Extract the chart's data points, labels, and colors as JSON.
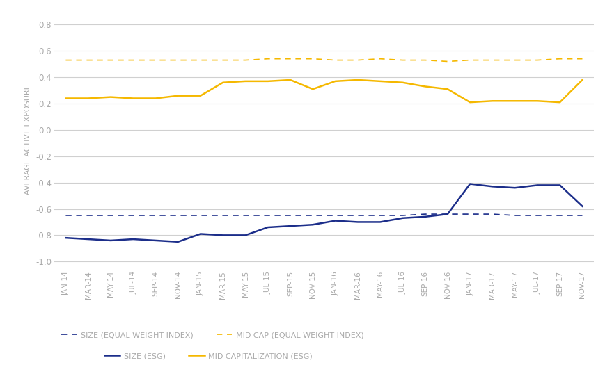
{
  "x_labels": [
    "JAN-14",
    "MAR-14",
    "MAY-14",
    "JUL-14",
    "SEP-14",
    "NOV-14",
    "JAN-15",
    "MAR-15",
    "MAY-15",
    "JUL-15",
    "SEP-15",
    "NOV-15",
    "JAN-16",
    "MAR-16",
    "MAY-16",
    "JUL-16",
    "SEP-16",
    "NOV-16",
    "JAN-17",
    "MAR-17",
    "MAY-17",
    "JUL-17",
    "SEP-17",
    "NOV-17"
  ],
  "size_esg": [
    -0.82,
    -0.83,
    -0.84,
    -0.83,
    -0.84,
    -0.85,
    -0.79,
    -0.8,
    -0.8,
    -0.74,
    -0.73,
    -0.72,
    -0.69,
    -0.7,
    -0.7,
    -0.67,
    -0.66,
    -0.64,
    -0.41,
    -0.43,
    -0.44,
    -0.42,
    -0.42,
    -0.58
  ],
  "size_ewi": [
    -0.65,
    -0.65,
    -0.65,
    -0.65,
    -0.65,
    -0.65,
    -0.65,
    -0.65,
    -0.65,
    -0.65,
    -0.65,
    -0.65,
    -0.65,
    -0.65,
    -0.65,
    -0.65,
    -0.64,
    -0.64,
    -0.64,
    -0.64,
    -0.65,
    -0.65,
    -0.65,
    -0.65
  ],
  "midcap_esg": [
    0.24,
    0.24,
    0.25,
    0.24,
    0.24,
    0.26,
    0.26,
    0.36,
    0.37,
    0.37,
    0.38,
    0.31,
    0.37,
    0.38,
    0.37,
    0.36,
    0.33,
    0.31,
    0.21,
    0.22,
    0.22,
    0.22,
    0.21,
    0.38
  ],
  "midcap_ewi": [
    0.53,
    0.53,
    0.53,
    0.53,
    0.53,
    0.53,
    0.53,
    0.53,
    0.53,
    0.54,
    0.54,
    0.54,
    0.53,
    0.53,
    0.54,
    0.53,
    0.53,
    0.52,
    0.53,
    0.53,
    0.53,
    0.53,
    0.54,
    0.54
  ],
  "color_blue_dark": "#1c2e8a",
  "color_blue_dashed": "#1c2e8a",
  "color_gold": "#f5b800",
  "color_gold_dashed": "#f5b800",
  "ylim": [
    -1.05,
    0.9
  ],
  "yticks": [
    -1.0,
    -0.8,
    -0.6,
    -0.4,
    -0.2,
    0.0,
    0.2,
    0.4,
    0.6,
    0.8
  ],
  "ylabel": "AVERAGE ACTIVE EXPOSURE",
  "legend_labels": [
    "SIZE (EQUAL WEIGHT INDEX)",
    "MID CAP (EQUAL WEIGHT INDEX)",
    "SIZE (ESG)",
    "MID CAPITALIZATION (ESG)"
  ],
  "background_color": "#ffffff",
  "grid_color": "#d0d0d0",
  "text_color": "#aaaaaa"
}
